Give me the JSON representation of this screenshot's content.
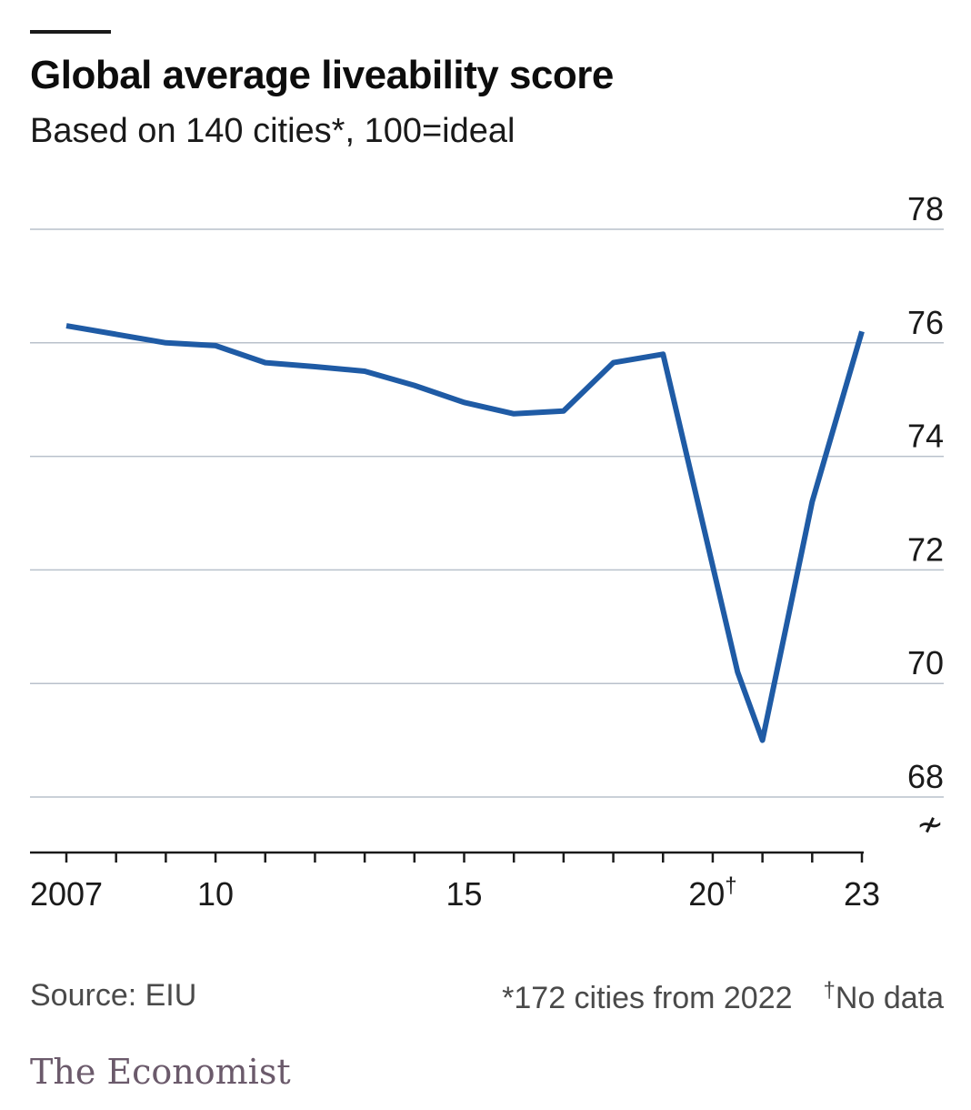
{
  "header": {
    "title": "Global average liveability score",
    "subtitle": "Based on 140 cities*, 100=ideal"
  },
  "chart_data": {
    "type": "line",
    "title": "Global average liveability score",
    "subtitle": "Based on 140 cities*, 100=ideal",
    "xlabel": "",
    "ylabel": "",
    "xlim": [
      2007,
      2023
    ],
    "ylim": [
      68,
      78
    ],
    "y_axis_side": "right",
    "y_ticks": [
      68,
      70,
      72,
      74,
      76,
      78
    ],
    "y_tick_labels": [
      "68",
      "70",
      "72",
      "74",
      "76",
      "78"
    ],
    "x_ticks": [
      2007,
      2010,
      2015,
      2020,
      2023
    ],
    "x_tick_labels": [
      "2007",
      "10",
      "15",
      "20",
      "23"
    ],
    "x_tick_superscripts": {
      "2020": "†"
    },
    "axis_break_symbol": "≁",
    "grid": true,
    "series": [
      {
        "name": "Global average liveability score",
        "color": "#1f5ba5",
        "x": [
          2007,
          2008,
          2009,
          2010,
          2011,
          2012,
          2013,
          2014,
          2015,
          2016,
          2017,
          2018,
          2019,
          2020.5,
          2021,
          2021.5,
          2022,
          2023
        ],
        "y": [
          76.3,
          76.15,
          76.0,
          75.95,
          75.65,
          75.58,
          75.5,
          75.25,
          74.95,
          74.75,
          74.8,
          75.65,
          75.8,
          70.2,
          69.0,
          71.1,
          73.2,
          76.2
        ]
      }
    ]
  },
  "footer": {
    "source": "Source: EIU",
    "note_1": "*172 cities from 2022",
    "note_2_mark": "†",
    "note_2": "No data",
    "brand": "The Economist"
  },
  "colors": {
    "line": "#1f5ba5",
    "grid": "#b9c1cb",
    "axis": "#1a1a1a",
    "brand": "#6b5a6b"
  }
}
